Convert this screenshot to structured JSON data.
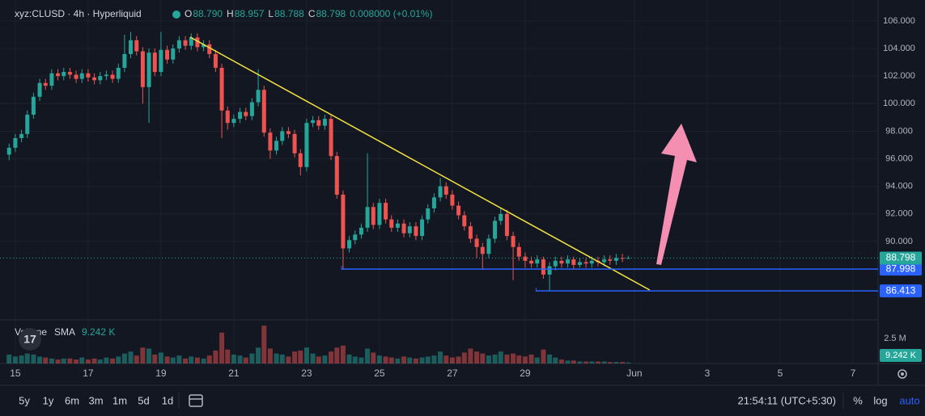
{
  "header": {
    "symbol": "xyz:CLUSD · 4h · Hyperliquid",
    "legend": [
      {
        "key": "O",
        "value": "88.790"
      },
      {
        "key": "H",
        "value": "88.957"
      },
      {
        "key": "L",
        "value": "88.788"
      },
      {
        "key": "C",
        "value": "88.798"
      }
    ],
    "change": "0.008000 (+0.01%)"
  },
  "chart_data": {
    "type": "candlestick",
    "up_color": "#26a69a",
    "down_color": "#ef5350",
    "grid": true,
    "xlim": [
      14.58,
      38.69
    ],
    "ylim": [
      84.37,
      107.52
    ],
    "y2lim": [
      0,
      4300000
    ],
    "xticks": [
      15,
      17,
      19,
      21,
      23,
      25,
      27,
      29,
      {
        "value": 32,
        "label": "Jun"
      },
      {
        "value": 34,
        "label": "3"
      },
      {
        "value": 36,
        "label": "5"
      },
      {
        "value": 38,
        "label": "7"
      }
    ],
    "yticks": [
      {
        "value": 90,
        "label": "90.000"
      },
      {
        "value": 92,
        "label": "92.000"
      },
      {
        "value": 94,
        "label": "94.000"
      },
      {
        "value": 96,
        "label": "96.000"
      },
      {
        "value": 98,
        "label": "98.000"
      },
      {
        "value": 100,
        "label": "100.000"
      },
      {
        "value": 102,
        "label": "102.000"
      },
      {
        "value": 104,
        "label": "104.000"
      },
      {
        "value": 106,
        "label": "106.000"
      }
    ],
    "y2ticks": [
      {
        "value": 2500000,
        "label": "2.5 M"
      }
    ],
    "x": [
      14.83,
      15,
      15.17,
      15.33,
      15.5,
      15.67,
      15.83,
      16,
      16.17,
      16.33,
      16.5,
      16.67,
      16.83,
      17,
      17.17,
      17.33,
      17.5,
      17.67,
      17.83,
      18,
      18.17,
      18.33,
      18.5,
      18.67,
      18.83,
      19,
      19.17,
      19.33,
      19.5,
      19.67,
      19.83,
      20,
      20.17,
      20.33,
      20.5,
      20.67,
      20.83,
      21,
      21.17,
      21.33,
      21.5,
      21.67,
      21.83,
      22,
      22.17,
      22.33,
      22.5,
      22.67,
      22.83,
      23,
      23.17,
      23.33,
      23.5,
      23.67,
      23.83,
      24,
      24.17,
      24.33,
      24.5,
      24.67,
      24.83,
      25,
      25.17,
      25.33,
      25.5,
      25.67,
      25.83,
      26,
      26.17,
      26.33,
      26.5,
      26.67,
      26.83,
      27,
      27.17,
      27.33,
      27.5,
      27.67,
      27.83,
      28,
      28.17,
      28.33,
      28.5,
      28.67,
      28.83,
      29,
      29.17,
      29.33,
      29.5,
      29.67,
      29.83,
      30,
      30.17,
      30.33,
      30.5,
      30.67,
      30.83,
      31,
      31.17,
      31.33,
      31.5,
      31.67,
      31.83
    ],
    "open": [
      96.3,
      96.8,
      97.5,
      97.8,
      99.2,
      100.5,
      101.5,
      101.3,
      102.2,
      102,
      102.3,
      102.1,
      101.8,
      102.2,
      101.9,
      101.7,
      102,
      102.1,
      101.8,
      102.6,
      103.6,
      104.6,
      103.8,
      101.2,
      103.7,
      102.3,
      103.9,
      103.2,
      104,
      104.6,
      104.2,
      104.8,
      104.1,
      104.3,
      103.6,
      102.6,
      99.5,
      98.6,
      98.9,
      99.4,
      99.1,
      100.1,
      101,
      97.9,
      96.6,
      97.3,
      98,
      97.8,
      96.4,
      95.4,
      98.6,
      98.8,
      98.4,
      98.9,
      96.2,
      93.4,
      89.5,
      90.1,
      90.5,
      91,
      92.5,
      91.2,
      92.8,
      91.6,
      91,
      91.3,
      90.6,
      91.1,
      90.4,
      91.6,
      92.4,
      93.2,
      94,
      93.4,
      92.6,
      91.9,
      91.1,
      90.2,
      89.6,
      89.1,
      90.2,
      91.5,
      92,
      90.4,
      89.6,
      88.9,
      88.6,
      88.4,
      88.7,
      87.6,
      88.2,
      88.6,
      88.4,
      88.7,
      88.3,
      88.5,
      88.4,
      88.6,
      88.5,
      88.7,
      88.6,
      88.8,
      88.79
    ],
    "high": [
      97.1,
      97.8,
      98.1,
      99.5,
      100.8,
      101.8,
      101.8,
      102.5,
      102.5,
      102.6,
      102.6,
      102.4,
      102.5,
      102.5,
      102.2,
      102.3,
      102.4,
      102.4,
      102.9,
      105,
      105.2,
      104.9,
      104.1,
      104,
      104,
      105.2,
      104.2,
      104.3,
      104.9,
      104.9,
      105.1,
      105.1,
      104.6,
      104.6,
      103.9,
      102.9,
      99.8,
      99.2,
      99.7,
      99.7,
      100.4,
      102.5,
      101.3,
      98.2,
      97.6,
      98.3,
      98.3,
      98.1,
      96.7,
      98.9,
      99.1,
      99.1,
      99.2,
      99.2,
      96.5,
      93.7,
      90.4,
      90.8,
      91.3,
      96.4,
      92.8,
      93.1,
      93.1,
      91.9,
      91.6,
      91.6,
      91.4,
      91.4,
      91.9,
      92.7,
      93.5,
      94.6,
      94.3,
      93.7,
      92.9,
      92.2,
      91.4,
      90.5,
      89.9,
      90.5,
      91.8,
      92.4,
      92.3,
      90.7,
      89.9,
      89.2,
      88.9,
      89,
      88.9,
      88.5,
      88.9,
      88.9,
      89,
      88.9,
      88.8,
      88.8,
      88.9,
      88.9,
      89,
      89,
      89.1,
      89.1,
      88.957
    ],
    "low": [
      95.9,
      96.5,
      97.2,
      97.5,
      98.9,
      100.2,
      101,
      101,
      101.7,
      101.7,
      101.8,
      101.5,
      101.5,
      101.6,
      101.4,
      101.4,
      101.7,
      101.5,
      101.5,
      102.3,
      103.3,
      103.5,
      100,
      98.6,
      102,
      102,
      102.9,
      102.9,
      103.7,
      103.9,
      103.9,
      103.8,
      103.8,
      103.3,
      102.3,
      97.5,
      98.1,
      98.3,
      98.6,
      98.8,
      98.8,
      99.8,
      97.6,
      96,
      96.3,
      97,
      97.5,
      96.1,
      94.8,
      95.1,
      98.3,
      98.1,
      98.1,
      95.9,
      93.1,
      88,
      89.2,
      89.8,
      90.2,
      90.7,
      90.9,
      90.9,
      91.3,
      90.7,
      90.7,
      90.3,
      90.3,
      90.1,
      90.1,
      91.3,
      92.1,
      92.9,
      93.1,
      92.3,
      91.6,
      90.8,
      89.9,
      88.8,
      88,
      88.8,
      89.9,
      91.2,
      90.1,
      87.2,
      88.6,
      88.1,
      88.1,
      88.1,
      87.3,
      86.4,
      87.9,
      88.1,
      88.1,
      88,
      88.1,
      88.1,
      88.1,
      88.2,
      88.2,
      88.3,
      88.3,
      88.5,
      88.788
    ],
    "close": [
      96.8,
      97.5,
      97.8,
      99.2,
      100.5,
      101.5,
      101.3,
      102.2,
      102,
      102.3,
      102.1,
      101.8,
      102.2,
      101.9,
      101.7,
      102,
      102.1,
      101.8,
      102.6,
      103.6,
      104.6,
      103.8,
      101.2,
      103.7,
      102.3,
      103.9,
      103.2,
      104,
      104.6,
      104.2,
      104.8,
      104.1,
      104.3,
      103.6,
      102.6,
      99.5,
      98.6,
      98.9,
      99.4,
      99.1,
      100.1,
      101,
      97.9,
      96.6,
      97.3,
      98,
      97.8,
      96.4,
      95.4,
      98.6,
      98.8,
      98.4,
      98.9,
      96.2,
      93.4,
      89.5,
      90.1,
      90.5,
      91,
      92.5,
      91.2,
      92.8,
      91.6,
      91,
      91.3,
      90.6,
      91.1,
      90.4,
      91.6,
      92.4,
      93.2,
      94,
      93.4,
      92.6,
      91.9,
      91.1,
      90.2,
      89.6,
      89.1,
      90.2,
      91.5,
      92,
      90.4,
      89.6,
      88.9,
      88.6,
      88.4,
      88.7,
      87.6,
      88.2,
      88.6,
      88.4,
      88.7,
      88.3,
      88.5,
      88.4,
      88.6,
      88.5,
      88.7,
      88.6,
      88.8,
      88.79,
      88.798
    ],
    "volume": [
      900000,
      700000,
      800000,
      1000000,
      900000,
      700000,
      600000,
      500000,
      400000,
      500000,
      500000,
      400000,
      600000,
      400000,
      500000,
      400000,
      600000,
      500000,
      700000,
      1000000,
      1200000,
      800000,
      1600000,
      1500000,
      900000,
      1100000,
      700000,
      600000,
      800000,
      500000,
      700000,
      600000,
      500000,
      800000,
      1300000,
      3100000,
      1400000,
      900000,
      800000,
      600000,
      1000000,
      1600000,
      3800000,
      1500000,
      1000000,
      900000,
      700000,
      1200000,
      1300000,
      1600000,
      1000000,
      700000,
      800000,
      1200000,
      1600000,
      1800000,
      900000,
      700000,
      600000,
      1500000,
      1100000,
      800000,
      700000,
      600000,
      500000,
      700000,
      600000,
      500000,
      600000,
      700000,
      800000,
      1200000,
      800000,
      600000,
      700000,
      1100000,
      1500000,
      1200000,
      1000000,
      800000,
      900000,
      1200000,
      900000,
      1000000,
      800000,
      700000,
      900000,
      600000,
      1400000,
      900000,
      600000,
      400000,
      300000,
      300000,
      200000,
      200000,
      200000,
      200000,
      200000,
      150000,
      150000,
      150000,
      100000
    ],
    "volume_legend": {
      "name": "Volume",
      "sma_label": "SMA",
      "sma": "9.242 K"
    },
    "last_price": 88.798,
    "trendline": {
      "color": "#f5e342",
      "x": [
        19.8,
        32.42
      ],
      "y": [
        104.83,
        86.48
      ]
    },
    "hlines": [
      {
        "value": 87.998,
        "x_start": 23.96,
        "color": "#2962ff"
      },
      {
        "value": 86.413,
        "x_start": 29.3,
        "color": "#2962ff"
      }
    ]
  },
  "toolbar": {
    "ranges": [
      "5y",
      "1y",
      "6m",
      "3m",
      "1m",
      "5d",
      "1d"
    ],
    "clock": "21:54:11 (UTC+5:30)",
    "percent": "%",
    "log": "log",
    "auto": "auto"
  }
}
